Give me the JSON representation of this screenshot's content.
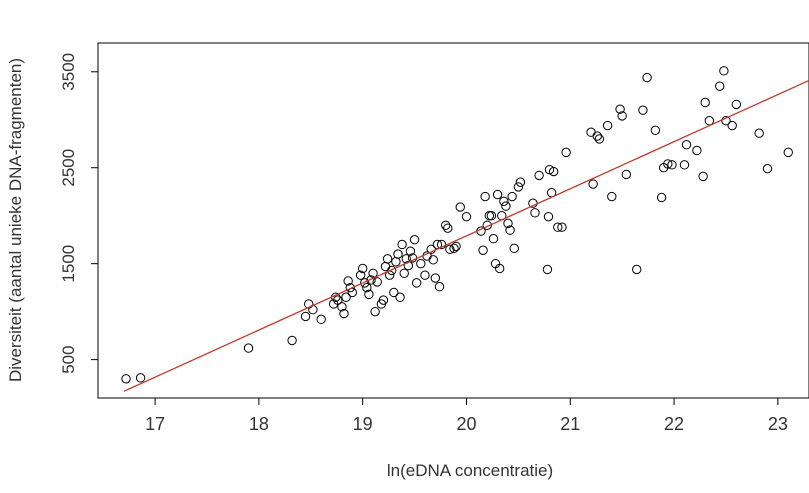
{
  "chart_data": {
    "type": "scatter",
    "title": "",
    "xlabel": "ln(eDNA concentratie)",
    "ylabel": "Diversiteit (aantal unieke DNA-fragmenten)",
    "xlim": [
      16.45,
      23.3
    ],
    "ylim": [
      100,
      3800
    ],
    "xticks": [
      17,
      18,
      19,
      20,
      21,
      22,
      23
    ],
    "yticks": [
      500,
      1500,
      2500,
      3500
    ],
    "grid": false,
    "marker": "open-circle",
    "point_color": "#000000",
    "regression_line": {
      "color": "#c0392b",
      "x": [
        16.7,
        23.3
      ],
      "y": [
        170,
        3410
      ]
    },
    "points": [
      [
        16.72,
        300
      ],
      [
        16.86,
        310
      ],
      [
        17.9,
        620
      ],
      [
        18.32,
        700
      ],
      [
        18.45,
        950
      ],
      [
        18.48,
        1080
      ],
      [
        18.52,
        1020
      ],
      [
        18.6,
        920
      ],
      [
        18.72,
        1080
      ],
      [
        18.74,
        1150
      ],
      [
        18.76,
        1120
      ],
      [
        18.8,
        1050
      ],
      [
        18.82,
        980
      ],
      [
        18.84,
        1150
      ],
      [
        18.86,
        1320
      ],
      [
        18.88,
        1250
      ],
      [
        18.9,
        1200
      ],
      [
        18.98,
        1380
      ],
      [
        19.0,
        1450
      ],
      [
        19.02,
        1300
      ],
      [
        19.04,
        1250
      ],
      [
        19.06,
        1180
      ],
      [
        19.08,
        1330
      ],
      [
        19.1,
        1400
      ],
      [
        19.12,
        1000
      ],
      [
        19.14,
        1310
      ],
      [
        19.18,
        1080
      ],
      [
        19.2,
        1120
      ],
      [
        19.22,
        1470
      ],
      [
        19.24,
        1550
      ],
      [
        19.26,
        1380
      ],
      [
        19.28,
        1430
      ],
      [
        19.3,
        1200
      ],
      [
        19.32,
        1520
      ],
      [
        19.34,
        1600
      ],
      [
        19.36,
        1150
      ],
      [
        19.38,
        1700
      ],
      [
        19.4,
        1400
      ],
      [
        19.42,
        1550
      ],
      [
        19.44,
        1480
      ],
      [
        19.46,
        1630
      ],
      [
        19.48,
        1560
      ],
      [
        19.5,
        1750
      ],
      [
        19.52,
        1300
      ],
      [
        19.56,
        1500
      ],
      [
        19.6,
        1380
      ],
      [
        19.62,
        1580
      ],
      [
        19.66,
        1650
      ],
      [
        19.68,
        1540
      ],
      [
        19.7,
        1350
      ],
      [
        19.72,
        1700
      ],
      [
        19.74,
        1260
      ],
      [
        19.76,
        1700
      ],
      [
        19.8,
        1900
      ],
      [
        19.82,
        1870
      ],
      [
        19.84,
        1650
      ],
      [
        19.88,
        1660
      ],
      [
        19.9,
        1680
      ],
      [
        19.94,
        2090
      ],
      [
        20.0,
        1990
      ],
      [
        20.14,
        1840
      ],
      [
        20.16,
        1640
      ],
      [
        20.18,
        2200
      ],
      [
        20.2,
        1900
      ],
      [
        20.22,
        2000
      ],
      [
        20.24,
        2000
      ],
      [
        20.26,
        1760
      ],
      [
        20.28,
        1500
      ],
      [
        20.3,
        2220
      ],
      [
        20.32,
        1450
      ],
      [
        20.34,
        2000
      ],
      [
        20.36,
        2150
      ],
      [
        20.38,
        2100
      ],
      [
        20.4,
        1920
      ],
      [
        20.42,
        1850
      ],
      [
        20.44,
        2200
      ],
      [
        20.46,
        1660
      ],
      [
        20.5,
        2300
      ],
      [
        20.52,
        2350
      ],
      [
        20.64,
        2130
      ],
      [
        20.66,
        2030
      ],
      [
        20.7,
        2420
      ],
      [
        20.78,
        1440
      ],
      [
        20.79,
        1990
      ],
      [
        20.8,
        2480
      ],
      [
        20.82,
        2240
      ],
      [
        20.84,
        2460
      ],
      [
        20.88,
        1880
      ],
      [
        20.92,
        1880
      ],
      [
        20.96,
        2660
      ],
      [
        21.2,
        2870
      ],
      [
        21.22,
        2330
      ],
      [
        21.26,
        2830
      ],
      [
        21.28,
        2800
      ],
      [
        21.36,
        2940
      ],
      [
        21.4,
        2200
      ],
      [
        21.48,
        3110
      ],
      [
        21.5,
        3040
      ],
      [
        21.54,
        2430
      ],
      [
        21.64,
        1440
      ],
      [
        21.7,
        3100
      ],
      [
        21.74,
        3440
      ],
      [
        21.82,
        2890
      ],
      [
        21.88,
        2190
      ],
      [
        21.9,
        2500
      ],
      [
        21.94,
        2540
      ],
      [
        21.98,
        2530
      ],
      [
        22.1,
        2530
      ],
      [
        22.12,
        2740
      ],
      [
        22.22,
        2680
      ],
      [
        22.28,
        2410
      ],
      [
        22.3,
        3180
      ],
      [
        22.34,
        2990
      ],
      [
        22.44,
        3350
      ],
      [
        22.48,
        3510
      ],
      [
        22.5,
        2990
      ],
      [
        22.56,
        2940
      ],
      [
        22.6,
        3160
      ],
      [
        22.82,
        2860
      ],
      [
        22.9,
        2490
      ],
      [
        23.1,
        2660
      ]
    ]
  }
}
